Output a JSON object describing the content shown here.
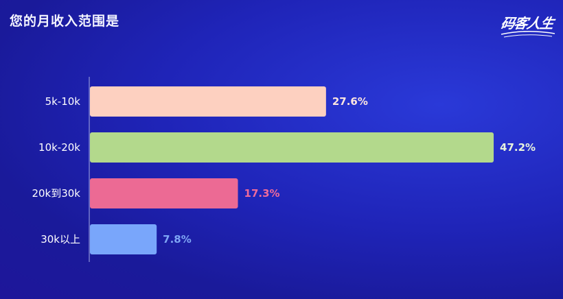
{
  "title": "您的月收入范围是",
  "logo": {
    "text": "码客人生"
  },
  "chart_data": {
    "type": "bar",
    "orientation": "horizontal",
    "title": "您的月收入范围是",
    "categories": [
      "5k-10k",
      "10k-20k",
      "20k到30k",
      "30k以上"
    ],
    "values": [
      27.6,
      47.2,
      17.3,
      7.8
    ],
    "value_labels": [
      "27.6%",
      "47.2%",
      "17.3%",
      "7.8%"
    ],
    "unit": "%",
    "colors": [
      "#fdd0c0",
      "#b3d98c",
      "#ec6a94",
      "#79a6fb"
    ],
    "label_colors": [
      "#fde6e0",
      "#e8f3dc",
      "#ef6b9b",
      "#7fa6f5"
    ],
    "xlim": [
      0,
      48
    ],
    "grid": false,
    "legend": "none"
  }
}
